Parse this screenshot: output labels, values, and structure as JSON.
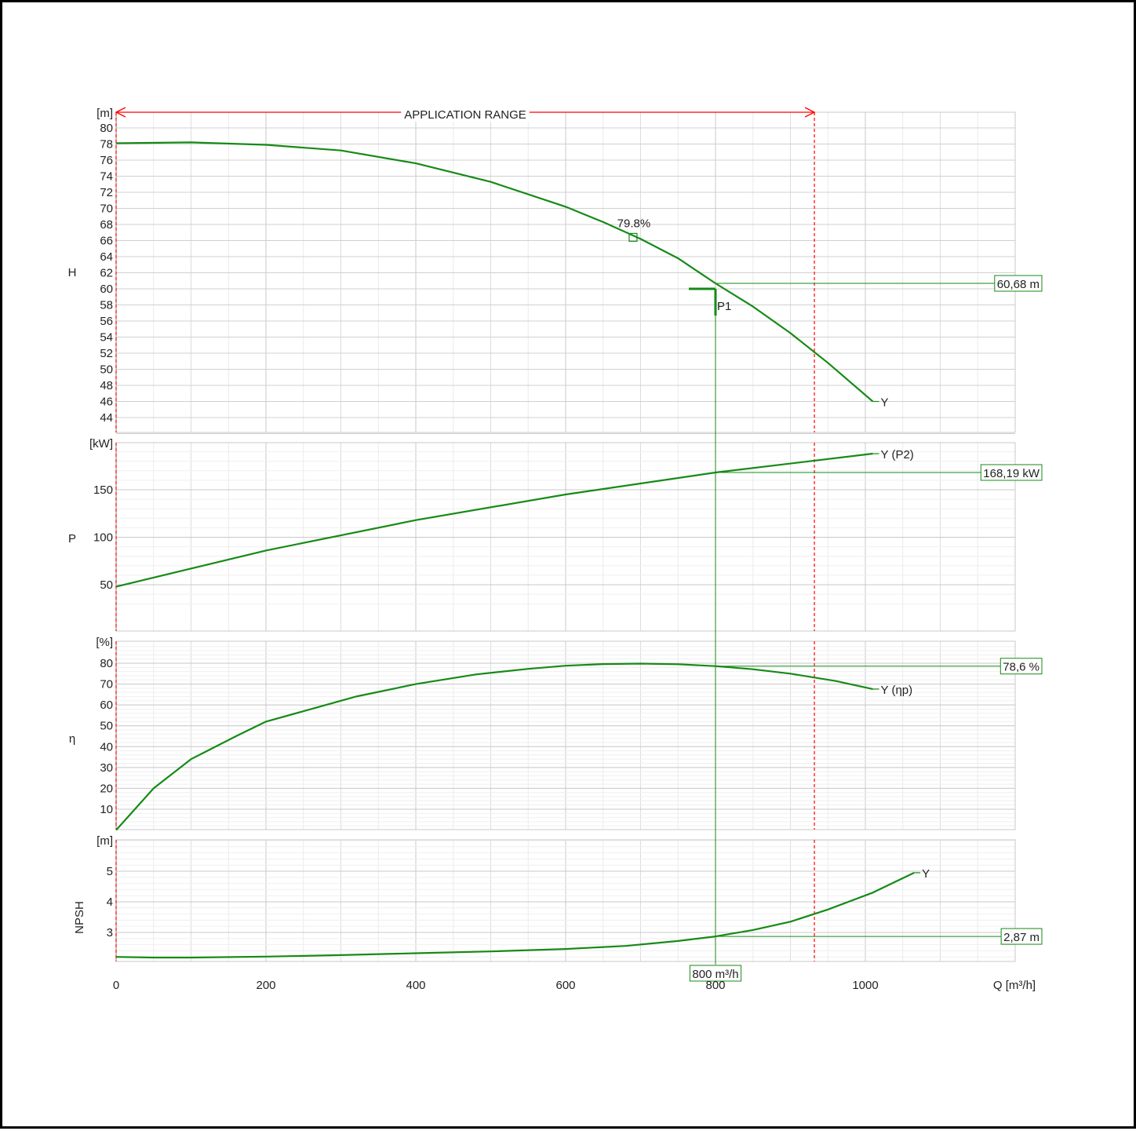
{
  "chart_data": {
    "type": "line",
    "x_axis": {
      "label": "Q [m³/h]",
      "ticks": [
        0,
        200,
        400,
        600,
        800,
        1000
      ],
      "range": [
        0,
        1200
      ]
    },
    "application_range": {
      "label": "APPLICATION RANGE",
      "from": 0,
      "to": 932,
      "color": "#ff0000"
    },
    "operating_point": {
      "label": "P1",
      "q": 800,
      "h": 60,
      "q_label": "800 m³/h"
    },
    "curve_color": "#168a16",
    "panels": [
      {
        "id": "head",
        "ylabel": "H",
        "unit": "[m]",
        "ylim": [
          40,
          82
        ],
        "ticks": [
          44,
          46,
          48,
          50,
          52,
          54,
          56,
          58,
          60,
          62,
          64,
          66,
          68,
          70,
          72,
          74,
          76,
          78,
          80
        ],
        "series": [
          {
            "name": "Y",
            "x": [
              0,
              100,
              200,
              300,
              400,
              500,
              600,
              650,
              700,
              750,
              800,
              850,
              900,
              950,
              1010
            ],
            "y": [
              78.1,
              78.2,
              77.9,
              77.2,
              75.6,
              73.3,
              70.2,
              68.3,
              66.2,
              63.8,
              60.68,
              57.8,
              54.5,
              50.8,
              46
            ]
          }
        ],
        "value_at_op": "60,68 m",
        "value_at_op_num": 60.68,
        "bep": {
          "label": "79.8%",
          "x": 690,
          "y": 66.4
        }
      },
      {
        "id": "power",
        "ylabel": "P",
        "unit": "[kW]",
        "ylim": [
          30,
          196
        ],
        "ticks": [
          50,
          100,
          150
        ],
        "series": [
          {
            "name": "Y (P2)",
            "x": [
              0,
              200,
              400,
              600,
              800,
              1010
            ],
            "y": [
              48,
              86,
              118,
              145,
              168.19,
              188
            ]
          }
        ],
        "value_at_op": "168,19 kW",
        "value_at_op_num": 168.19
      },
      {
        "id": "efficiency",
        "ylabel": "η",
        "unit": "[%]",
        "ylim": [
          0,
          88
        ],
        "ticks": [
          10,
          20,
          30,
          40,
          50,
          60,
          70,
          80
        ],
        "series": [
          {
            "name": "Y (ηp)",
            "x": [
              0,
              50,
              100,
              160,
              200,
              270,
              320,
              400,
              480,
              550,
              600,
              650,
              700,
              750,
              800,
              850,
              900,
              960,
              1010
            ],
            "y": [
              0,
              20,
              34,
              45,
              52,
              59,
              64,
              70,
              74.6,
              77.3,
              78.8,
              79.6,
              79.8,
              79.5,
              78.6,
              77.1,
              75,
              71.5,
              67.6
            ]
          }
        ],
        "value_at_op": "78,6 %",
        "value_at_op_num": 78.6
      },
      {
        "id": "npsh",
        "ylabel": "NPSH",
        "unit": "[m]",
        "ylim": [
          2,
          6
        ],
        "ticks": [
          3,
          4,
          5
        ],
        "series": [
          {
            "name": "Y",
            "x": [
              0,
              50,
              100,
              200,
              300,
              400,
              500,
              600,
              680,
              750,
              800,
              850,
              900,
              950,
              1010,
              1065
            ],
            "y": [
              2.2,
              2.18,
              2.18,
              2.21,
              2.26,
              2.32,
              2.38,
              2.46,
              2.56,
              2.72,
              2.87,
              3.08,
              3.35,
              3.75,
              4.3,
              4.95
            ]
          }
        ],
        "value_at_op": "2,87 m",
        "value_at_op_num": 2.87
      }
    ]
  }
}
